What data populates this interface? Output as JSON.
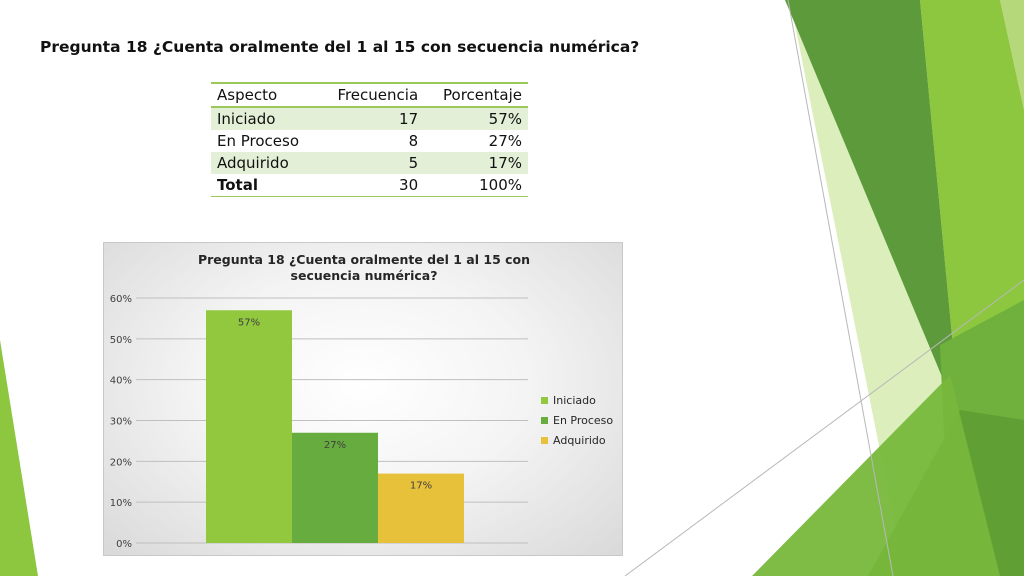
{
  "slide": {
    "title": "Pregunta 18 ¿Cuenta oralmente del 1 al 15 con secuencia numérica?"
  },
  "table": {
    "headers": [
      "Aspecto",
      "Frecuencia",
      "Porcentaje"
    ],
    "rows": [
      {
        "aspect": "Iniciado",
        "frequency": "17",
        "percent": "57%"
      },
      {
        "aspect": "En Proceso",
        "frequency": "8",
        "percent": "27%"
      },
      {
        "aspect": "Adquirido",
        "frequency": "5",
        "percent": "17%"
      },
      {
        "aspect": "Total",
        "frequency": "30",
        "percent": "100%"
      }
    ]
  },
  "chart_data": {
    "type": "bar",
    "title": "Pregunta 18 ¿Cuenta oralmente del 1 al 15 con secuencia numérica?",
    "xlabel": "",
    "ylabel": "",
    "ylim": [
      0,
      0.6
    ],
    "yticks": [
      0,
      0.1,
      0.2,
      0.3,
      0.4,
      0.5,
      0.6
    ],
    "ytick_labels": [
      "0%",
      "10%",
      "20%",
      "30%",
      "40%",
      "50%",
      "60%"
    ],
    "grid": true,
    "legend_position": "right",
    "series": [
      {
        "name": "Iniciado",
        "value": 0.57,
        "label": "57%",
        "color": "#92c83e"
      },
      {
        "name": "En Proceso",
        "value": 0.27,
        "label": "27%",
        "color": "#67ac3f"
      },
      {
        "name": "Adquirido",
        "value": 0.17,
        "label": "17%",
        "color": "#e8c13b"
      }
    ]
  },
  "decor_colors": {
    "light_green": "#c5e08e",
    "mid_green": "#8dc63f",
    "dark_green": "#5d9a3c",
    "deep_green": "#4f8a2b"
  }
}
